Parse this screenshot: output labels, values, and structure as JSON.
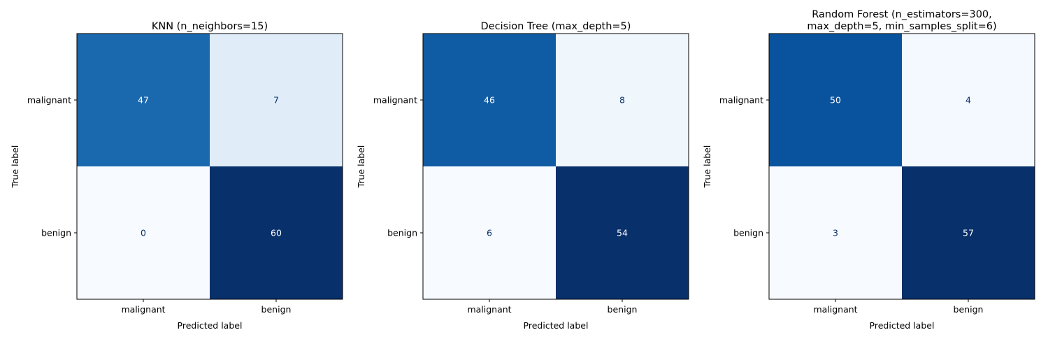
{
  "colors": {
    "cmap": "Blues",
    "dark_text": "#08306b",
    "light_text": "#ffffff"
  },
  "chart_data": [
    {
      "type": "heatmap",
      "title": "KNN (n_neighbors=15)",
      "xlabel": "Predicted label",
      "ylabel": "True label",
      "x_categories": [
        "malignant",
        "benign"
      ],
      "y_categories": [
        "malignant",
        "benign"
      ],
      "matrix": [
        [
          47,
          7
        ],
        [
          0,
          60
        ]
      ],
      "vmin": 0,
      "vmax": 60,
      "colorbar": false
    },
    {
      "type": "heatmap",
      "title": "Decision Tree (max_depth=5)",
      "xlabel": "Predicted label",
      "ylabel": "True label",
      "x_categories": [
        "malignant",
        "benign"
      ],
      "y_categories": [
        "malignant",
        "benign"
      ],
      "matrix": [
        [
          46,
          8
        ],
        [
          6,
          54
        ]
      ],
      "vmin": 6,
      "vmax": 54,
      "colorbar": false
    },
    {
      "type": "heatmap",
      "title": "Random Forest (n_estimators=300,\nmax_depth=5, min_samples_split=6)",
      "xlabel": "Predicted label",
      "ylabel": "True label",
      "x_categories": [
        "malignant",
        "benign"
      ],
      "y_categories": [
        "malignant",
        "benign"
      ],
      "matrix": [
        [
          50,
          4
        ],
        [
          3,
          57
        ]
      ],
      "vmin": 3,
      "vmax": 57,
      "colorbar": false
    }
  ]
}
